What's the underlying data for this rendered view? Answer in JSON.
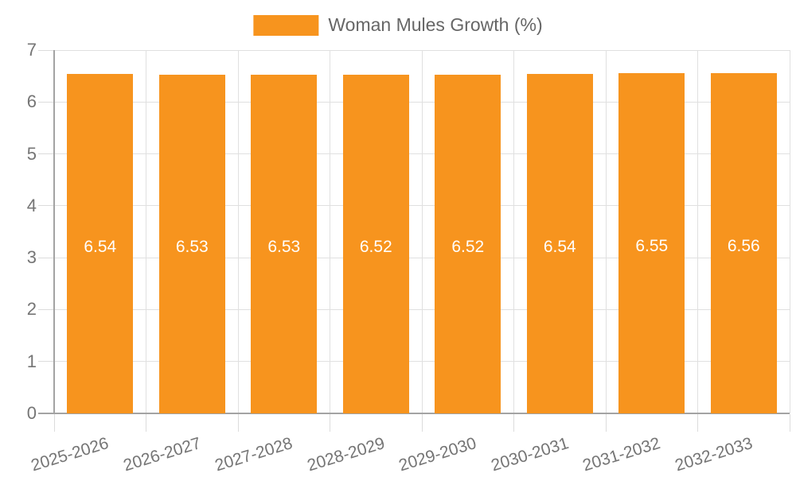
{
  "legend": {
    "label": "Woman Mules Growth (%)",
    "swatch_color": "#F7941E"
  },
  "chart_data": {
    "type": "bar",
    "title": "",
    "xlabel": "",
    "ylabel": "",
    "categories": [
      "2025-2026",
      "2026-2027",
      "2027-2028",
      "2028-2029",
      "2029-2030",
      "2030-2031",
      "2031-2032",
      "2032-2033"
    ],
    "values": [
      6.54,
      6.53,
      6.53,
      6.52,
      6.52,
      6.54,
      6.55,
      6.56
    ],
    "series_name": "Woman Mules Growth (%)",
    "ylim": [
      0,
      7
    ],
    "yticks": [
      0,
      1,
      2,
      3,
      4,
      5,
      6,
      7
    ],
    "grid": true,
    "legend_position": "top-center",
    "x_label_rotation_deg": -17,
    "value_labels_shown": true
  },
  "colors": {
    "bar": "#F7941E",
    "grid": "#E0E0E0",
    "tick": "#DCDCDC",
    "axis_line": "#A3A3A3",
    "axis_label": "#757575",
    "legend_text": "#666666",
    "value_label": "#FFFFFF",
    "background": "#FFFFFF"
  }
}
